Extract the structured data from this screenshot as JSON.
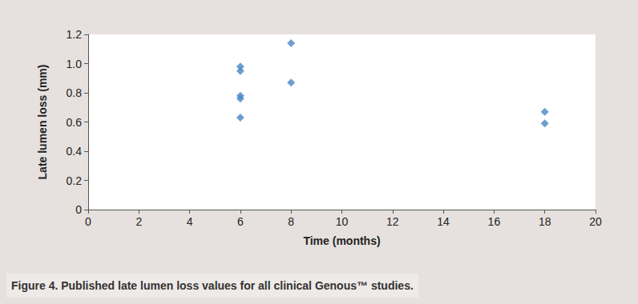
{
  "chart_data": {
    "type": "scatter",
    "title": "Figure 4. Published late lumen loss values for all clinical Genous™ studies.",
    "x_label": "Time (months)",
    "y_label": "Late lumen loss (mm)",
    "x": [
      6,
      6,
      6,
      6,
      6,
      8,
      8,
      18,
      18
    ],
    "values": [
      0.98,
      0.95,
      0.78,
      0.76,
      0.63,
      1.14,
      0.87,
      0.67,
      0.59
    ],
    "color": "#4a86c5",
    "marker": "diamond",
    "xlim": [
      0,
      20
    ],
    "xticks": [
      0,
      2,
      4,
      6,
      8,
      10,
      12,
      14,
      16,
      18,
      20
    ],
    "ylim": [
      0,
      1.2
    ],
    "yticks": [
      0,
      0.2,
      0.4,
      0.6,
      0.8,
      {
        "value": 1,
        "label": "1.0"
      },
      1.2
    ],
    "grid": false
  }
}
